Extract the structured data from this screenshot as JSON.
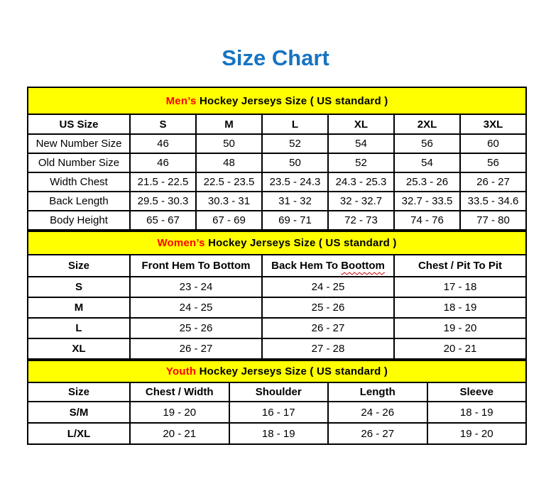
{
  "page_title": "Size Chart",
  "colors": {
    "title_blue": "#1674C2",
    "band_yellow": "#FFFF00",
    "accent_red": "#FF0000",
    "squiggle_red": "#C00000",
    "text_black": "#000000",
    "background": "#FFFFFF"
  },
  "tables": [
    {
      "id": "mens",
      "section_title_accent": "Men’s",
      "section_title_rest": "Hockey Jerseys Size ( US standard )",
      "columns": [
        "US Size",
        "S",
        "M",
        "L",
        "XL",
        "2XL",
        "3XL"
      ],
      "rows": [
        [
          "New Number Size",
          "46",
          "50",
          "52",
          "54",
          "56",
          "60"
        ],
        [
          "Old Number Size",
          "46",
          "48",
          "50",
          "52",
          "54",
          "56"
        ],
        [
          "Width Chest",
          "21.5 - 22.5",
          "22.5 - 23.5",
          "23.5 - 24.3",
          "24.3 - 25.3",
          "25.3 - 26",
          "26 - 27"
        ],
        [
          "Back Length",
          "29.5 - 30.3",
          "30.3 - 31",
          "31 - 32",
          "32 - 32.7",
          "32.7 - 33.5",
          "33.5 - 34.6"
        ],
        [
          "Body Height",
          "65 - 67",
          "67 - 69",
          "69 - 71",
          "72 - 73",
          "74 - 76",
          "77 - 80"
        ]
      ],
      "bold_first_col": false
    },
    {
      "id": "womens",
      "section_title_accent": "Women’s",
      "section_title_rest": "Hockey Jerseys Size ( US standard )",
      "columns": [
        "Size",
        "Front Hem To Bottom",
        "Back Hem To Boottom",
        "Chest / Pit To Pit"
      ],
      "wavy": {
        "col": 2,
        "prefix": "Back Hem To ",
        "word": "Boottom"
      },
      "rows": [
        [
          "S",
          "23 - 24",
          "24 - 25",
          "17 - 18"
        ],
        [
          "M",
          "24 - 25",
          "25 - 26",
          "18 - 19"
        ],
        [
          "L",
          "25 - 26",
          "26 - 27",
          "19 - 20"
        ],
        [
          "XL",
          "26 - 27",
          "27 - 28",
          "20 - 21"
        ]
      ],
      "bold_first_col": true
    },
    {
      "id": "youth",
      "section_title_accent": "Youth",
      "section_title_rest": "Hockey Jerseys Size ( US standard )",
      "columns": [
        "Size",
        "Chest / Width",
        "Shoulder",
        "Length",
        "Sleeve"
      ],
      "rows": [
        [
          "S/M",
          "19 - 20",
          "16 - 17",
          "24 - 26",
          "18 - 19"
        ],
        [
          "L/XL",
          "20 - 21",
          "18 - 19",
          "26 - 27",
          "19 - 20"
        ]
      ],
      "bold_first_col": true
    }
  ]
}
